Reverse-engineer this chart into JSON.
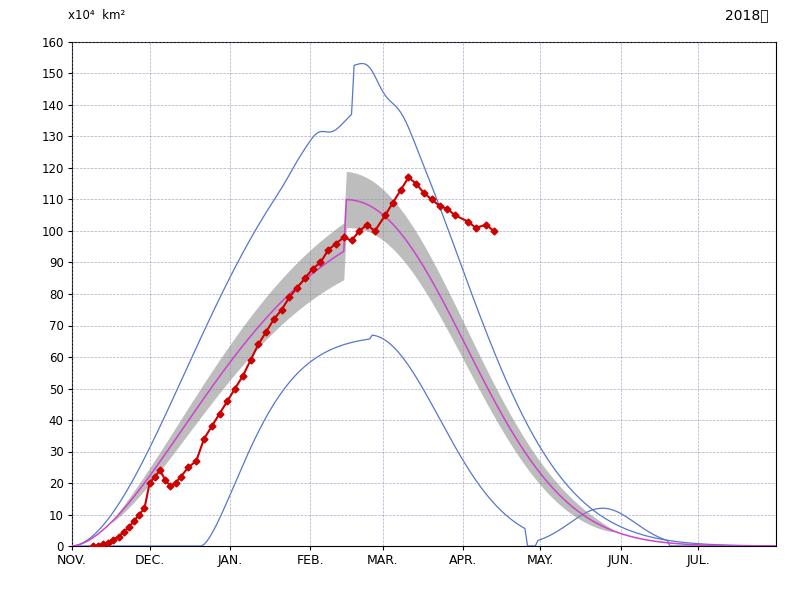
{
  "title": "2018年",
  "ylabel_line1": "x10⁴  km²",
  "yticks": [
    0,
    10,
    20,
    30,
    40,
    50,
    60,
    70,
    80,
    90,
    100,
    110,
    120,
    130,
    140,
    150,
    160
  ],
  "xlabels": [
    "NOV.",
    "DEC.",
    "JAN.",
    "FEB.",
    "MAR.",
    "APR.",
    "MAY.",
    "JUN.",
    "JUL."
  ],
  "days_per_month": [
    30,
    31,
    31,
    28,
    31,
    30,
    31,
    30,
    31
  ],
  "background_color": "#ffffff",
  "grid_color": "#8888bb",
  "mean_color": "#cc44cc",
  "band_color": "#888888",
  "outer_color": "#5577cc",
  "red_color": "#cc0000",
  "mean_peak_day": 105,
  "mean_peak_val": 110,
  "omax_peak_day": 108,
  "omax_peak_val": 152,
  "omin_peak_day": 115,
  "omin_peak_val": 67
}
